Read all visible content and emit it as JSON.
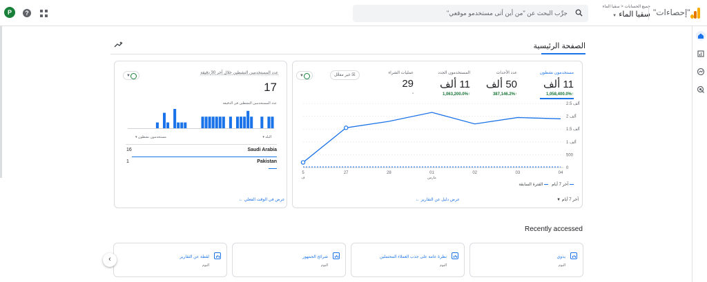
{
  "header": {
    "brand": "\"إحصاءات\"",
    "account_breadcrumb": "جميع الحسابات < سقيا الماء",
    "property": "سقيا الماء",
    "search_placeholder": "جرِّب البحث عن \"من أين أتى مستخدمو موقعي\"",
    "avatar_letter": "P",
    "help": "?"
  },
  "page": {
    "title": "الصفحة الرئيسية"
  },
  "overview": {
    "metrics": [
      {
        "label": "مستخدمون نشطون",
        "value": "11 ألف",
        "change": "1,058,400.0%",
        "active": true
      },
      {
        "label": "عدد الأحداث",
        "value": "50 ألف",
        "change": "387,146.2%"
      },
      {
        "label": "المستخدمون الجدد",
        "value": "11 ألف",
        "change": "1,063,200.0%"
      },
      {
        "label": "عمليات الشراء",
        "value": "29",
        "change": "-"
      }
    ],
    "not_set_chip": "غير مفعَّل",
    "y_ticks": [
      "2.5 ألف",
      "2 ألف",
      "1.5 ألف",
      "1 ألف",
      "500",
      "0"
    ],
    "x_ticks": [
      "5",
      "27",
      "28",
      "01",
      "02",
      "03",
      "04"
    ],
    "x_sub": [
      "ف",
      "",
      "",
      "مارس",
      "",
      "",
      ""
    ],
    "legend_current": "آخر 7 أيام",
    "legend_previous": "الفترة السابقة",
    "date_range": "آخر 7 أيام",
    "view_reports_link": "عرض دليل عن التقارير"
  },
  "chart_data": {
    "type": "line",
    "x": [
      "5",
      "27",
      "28",
      "01",
      "02",
      "03",
      "04"
    ],
    "series": [
      {
        "name": "آخر 7 أيام",
        "values": [
          200,
          1550,
          1800,
          2150,
          1700,
          1950,
          1900
        ]
      },
      {
        "name": "الفترة السابقة",
        "values": [
          0,
          0,
          0,
          0,
          0,
          0,
          0
        ]
      }
    ],
    "ylim": [
      0,
      2500
    ]
  },
  "realtime": {
    "title": "عدد المستخدمين النشطين خلال آخر 30 دقيقة",
    "value": "17",
    "per_minute_label": "عدد المستخدمين النشطين في الدقيقة",
    "bars": [
      0,
      0,
      1,
      2,
      0,
      0,
      0,
      0,
      0,
      0,
      0,
      1,
      0,
      0,
      0,
      1,
      0,
      3,
      0,
      0,
      2,
      0,
      0,
      1,
      0,
      0,
      1,
      2,
      1,
      3,
      1,
      0
    ],
    "bars_data": [
      0,
      0,
      0,
      0,
      0,
      0,
      0,
      0,
      3,
      0,
      8,
      3,
      0,
      10,
      3,
      3,
      3,
      0,
      0,
      0,
      0,
      6,
      6,
      6,
      6,
      6,
      6,
      6,
      0,
      6,
      0,
      6,
      6,
      6,
      9,
      6,
      0,
      0,
      6,
      0,
      6,
      6
    ],
    "col_country": "البلد",
    "col_users": "مستخدمون نشطون",
    "rows": [
      {
        "country": "Saudi Arabia",
        "users": "16",
        "share": 1.0
      },
      {
        "country": "Pakistan",
        "users": "1",
        "share": 0.06
      }
    ],
    "view_realtime_link": "عرض في الوقت الفعلي"
  },
  "recent": {
    "heading": "Recently accessed",
    "cards": [
      {
        "title": "يدوي",
        "sub": "اليوم"
      },
      {
        "title": "نظرة عامة على جذب العملاء المحتملين",
        "sub": "اليوم"
      },
      {
        "title": "شرائح الجمهور",
        "sub": "اليوم"
      },
      {
        "title": "لقطة عن التقارير",
        "sub": "اليوم"
      }
    ]
  },
  "colors": {
    "accent": "#1a73e8",
    "positive": "#137333",
    "brand_green": "#188038"
  }
}
